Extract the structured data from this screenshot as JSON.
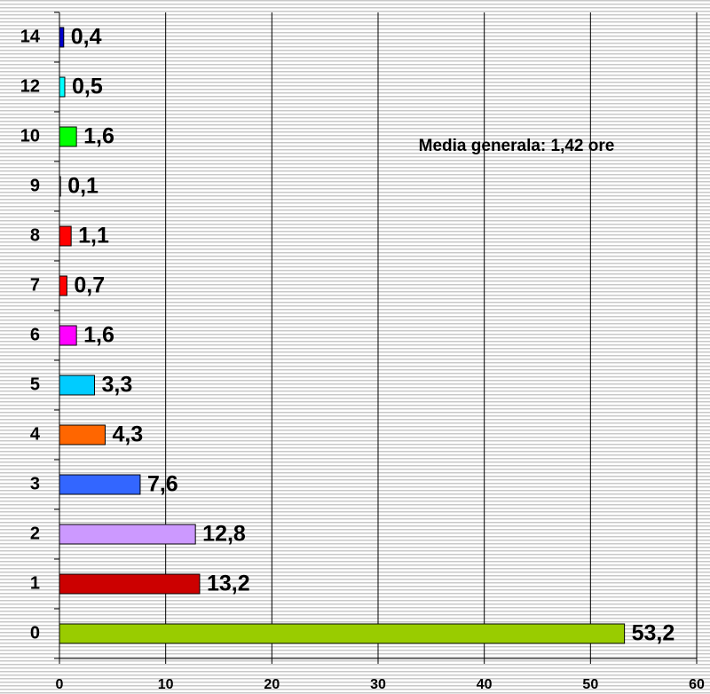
{
  "chart_data": {
    "type": "bar",
    "orientation": "horizontal",
    "categories": [
      "0",
      "1",
      "2",
      "3",
      "4",
      "5",
      "6",
      "7",
      "8",
      "9",
      "10",
      "12",
      "14"
    ],
    "values": [
      53.2,
      13.2,
      12.8,
      7.6,
      4.3,
      3.3,
      1.6,
      0.7,
      1.1,
      0.1,
      1.6,
      0.5,
      0.4
    ],
    "value_labels": [
      "53,2",
      "13,2",
      "12,8",
      "7,6",
      "4,3",
      "3,3",
      "1,6",
      "0,7",
      "1,1",
      "0,1",
      "1,6",
      "0,5",
      "0,4"
    ],
    "colors": [
      "#99cc00",
      "#cc0000",
      "#cc99ff",
      "#3366ff",
      "#ff6600",
      "#00ccff",
      "#ff00ff",
      "#ff0000",
      "#ff0000",
      "#ffffff",
      "#00ff00",
      "#00ffff",
      "#0000cc"
    ],
    "annotation": "Media generala: 1,42 ore",
    "xlim": [
      0,
      60
    ],
    "xticks": [
      0,
      10,
      20,
      30,
      40,
      50,
      60
    ],
    "grid": true
  }
}
